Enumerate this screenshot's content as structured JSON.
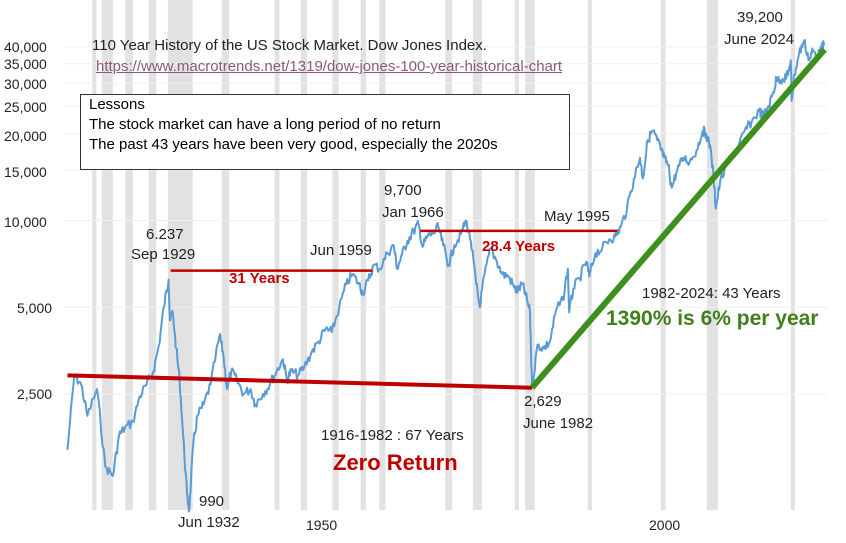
{
  "chart_data": {
    "type": "line",
    "title": "110 Year History of the US Stock Market. Dow Jones Index.",
    "source_url": "https://www.macrotrends.net/1319/dow-jones-100-year-historical-chart",
    "y_scale": "log",
    "ylim": [
      1100,
      47000
    ],
    "xlim": [
      1914.5,
      2025.5
    ],
    "y_ticks": [
      {
        "label": "40,000",
        "value": 40000
      },
      {
        "label": "35,000",
        "value": 35000
      },
      {
        "label": "30,000",
        "value": 30000
      },
      {
        "label": "25,000",
        "value": 25000
      },
      {
        "label": "20,000",
        "value": 20000
      },
      {
        "label": "15,000",
        "value": 15000
      },
      {
        "label": "10,000",
        "value": 10000
      },
      {
        "label": "5,000",
        "value": 5000
      },
      {
        "label": "2,500",
        "value": 2500
      }
    ],
    "x_ticks": [
      {
        "label": "1950",
        "value": 1950
      },
      {
        "label": "2000",
        "value": 2000
      }
    ],
    "recessions": [
      [
        1918.6,
        1919.2
      ],
      [
        1920.0,
        1921.6
      ],
      [
        1923.4,
        1924.5
      ],
      [
        1926.8,
        1927.9
      ],
      [
        1929.6,
        1933.2
      ],
      [
        1937.4,
        1938.5
      ],
      [
        1945.1,
        1945.8
      ],
      [
        1948.9,
        1949.8
      ],
      [
        1953.5,
        1954.4
      ],
      [
        1957.6,
        1958.4
      ],
      [
        1960.3,
        1961.2
      ],
      [
        1969.9,
        1970.9
      ],
      [
        1973.9,
        1975.2
      ],
      [
        1980.0,
        1980.6
      ],
      [
        1981.5,
        1982.9
      ],
      [
        1990.6,
        1991.2
      ],
      [
        2001.2,
        2001.9
      ],
      [
        2007.9,
        2009.5
      ],
      [
        2020.1,
        2020.4
      ]
    ],
    "series": [
      {
        "color": "#5b9bd5",
        "x": [
          1915.0,
          1916.0,
          1917.0,
          1917.9,
          1919.3,
          1920.5,
          1921.6,
          1922.5,
          1923.3,
          1924.5,
          1925.5,
          1926.5,
          1927.5,
          1928.3,
          1929.0,
          1929.7,
          1929.9,
          1930.3,
          1930.8,
          1931.3,
          1931.8,
          1932.4,
          1932.7,
          1933.3,
          1933.9,
          1934.8,
          1935.8,
          1937.1,
          1937.6,
          1938.2,
          1938.8,
          1939.6,
          1940.6,
          1941.6,
          1942.3,
          1943.4,
          1944.4,
          1945.4,
          1946.3,
          1946.9,
          1947.5,
          1948.5,
          1949.4,
          1950.5,
          1951.5,
          1952.5,
          1953.4,
          1954.5,
          1955.5,
          1956.4,
          1957.4,
          1957.9,
          1958.7,
          1959.5,
          1960.4,
          1961.5,
          1962.4,
          1962.9,
          1963.6,
          1964.4,
          1965.3,
          1966.0,
          1966.6,
          1967.3,
          1968.1,
          1968.9,
          1969.6,
          1970.4,
          1971.2,
          1972.2,
          1972.9,
          1973.6,
          1974.4,
          1974.9,
          1975.6,
          1976.5,
          1977.4,
          1978.2,
          1979.1,
          1980.0,
          1980.4,
          1981.1,
          1981.6,
          1982.2,
          1982.5,
          1983.3,
          1984.2,
          1985.1,
          1986.0,
          1987.0,
          1987.7,
          1987.9,
          1988.5,
          1989.4,
          1990.4,
          1990.8,
          1991.7,
          1992.7,
          1993.7,
          1994.6,
          1995.4,
          1996.3,
          1997.3,
          1998.2,
          1998.6,
          1999.3,
          2000.0,
          2000.7,
          2001.3,
          2001.7,
          2002.3,
          2002.8,
          2003.6,
          2004.5,
          2005.4,
          2006.4,
          2007.3,
          2007.8,
          2008.5,
          2009.0,
          2009.2,
          2009.8,
          2010.7,
          2011.6,
          2012.5,
          2013.4,
          2014.4,
          2015.5,
          2016.1,
          2016.9,
          2017.6,
          2018.0,
          2018.9,
          2019.7,
          2020.1,
          2020.2,
          2020.6,
          2021.3,
          2022.0,
          2022.8,
          2023.3,
          2024.0,
          2024.5,
          2025.0
        ],
        "y": [
          1600,
          2900,
          2700,
          2100,
          2600,
          1400,
          1300,
          1800,
          1900,
          2000,
          2450,
          2700,
          3000,
          3700,
          5000,
          6237,
          4500,
          4800,
          3600,
          2800,
          1800,
          1100,
          990,
          1700,
          2100,
          2300,
          2700,
          4000,
          3500,
          2600,
          3000,
          2800,
          2500,
          2600,
          2300,
          2500,
          2700,
          3000,
          3300,
          2800,
          3000,
          2900,
          3100,
          3500,
          3800,
          4200,
          4100,
          5000,
          6000,
          6500,
          6000,
          5600,
          6200,
          7000,
          6800,
          7700,
          8200,
          6800,
          7600,
          8500,
          9200,
          9700,
          8100,
          8800,
          9000,
          9500,
          8200,
          7000,
          8200,
          9000,
          10000,
          8500,
          6000,
          5000,
          6500,
          8000,
          7200,
          6500,
          6400,
          5800,
          5700,
          6000,
          5500,
          4800,
          2629,
          3700,
          3600,
          3800,
          4900,
          5300,
          6800,
          4800,
          5800,
          6300,
          7200,
          6400,
          7700,
          8000,
          8600,
          8800,
          9500,
          11000,
          14000,
          16500,
          14000,
          19000,
          20500,
          19000,
          17500,
          16500,
          15500,
          13000,
          15000,
          16500,
          16000,
          17500,
          20500,
          20000,
          17500,
          13000,
          11000,
          13500,
          15500,
          17000,
          18000,
          20500,
          22000,
          24000,
          23000,
          25000,
          28000,
          31000,
          31000,
          32000,
          36000,
          26000,
          32000,
          38000,
          42000,
          36000,
          39000,
          37000,
          39200,
          41000
        ]
      }
    ],
    "trend_lines": [
      {
        "name": "1916-1982 : 67 Years",
        "from": [
          1915.0,
          2900
        ],
        "to": [
          1982.5,
          2629
        ],
        "color": "#c00000"
      },
      {
        "name": "1982-2024: 43 Years",
        "from": [
          1982.5,
          2629
        ],
        "to": [
          2025.0,
          39200
        ],
        "color": "#3f8f1f"
      }
    ],
    "spans": [
      {
        "label": "31 Years",
        "from": [
          1930.0,
          6700
        ],
        "to": [
          1959.3,
          6700
        ],
        "color": "#c00000"
      },
      {
        "label": "28.4 Years",
        "from": [
          1966.3,
          9200
        ],
        "to": [
          1994.9,
          9200
        ],
        "color": "#c00000"
      }
    ],
    "lessons": {
      "heading": "Lessons",
      "line1": "The stock market can have a long period of no return",
      "line2": "The past 43 years have been very good, especially the 2020s"
    },
    "annotations": {
      "peak_1929_value": "6.237",
      "peak_1929_date": "Sep 1929",
      "low_1932_value": "990",
      "low_1932_date": "Jun 1932",
      "jun_1959": "Jun 1959",
      "span_31": "31 Years",
      "peak_1966_value": "9,700",
      "peak_1966_date": "Jan 1966",
      "may_1995": "May 1995",
      "span_28": "28.4 Years",
      "low_1982_value": "2,629",
      "low_1982_date": "June 1982",
      "period_1916": "1916-1982 : 67 Years",
      "zero_return": "Zero Return",
      "period_1982": "1982-2024: 43 Years",
      "pct_per_year": "1390% is 6% per year",
      "peak_2024_value": "39,200",
      "peak_2024_date": "June 2024"
    }
  }
}
